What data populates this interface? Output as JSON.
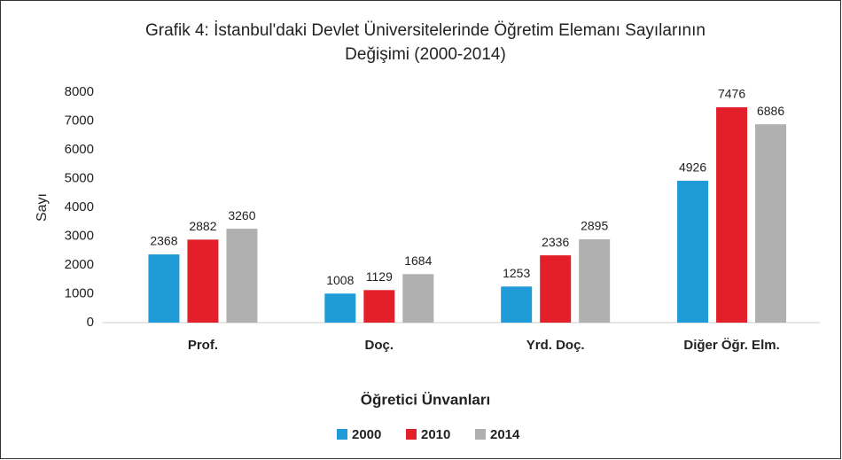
{
  "chart_data": {
    "type": "bar",
    "title": [
      "Grafik 4: İstanbul'daki Devlet Üniversitelerinde Öğretim Elemanı Sayılarının",
      "Değişimi (2000-2014)"
    ],
    "ylabel": "Sayı",
    "xlabel": "Öğretici Ünvanları",
    "categories": [
      "Prof.",
      "Doç.",
      "Yrd. Doç.",
      "Diğer Öğr. Elm."
    ],
    "series": [
      {
        "name": "2000",
        "color": "#1f9bd7",
        "values": [
          2368,
          1008,
          1253,
          4926
        ]
      },
      {
        "name": "2010",
        "color": "#e3202a",
        "values": [
          2882,
          1129,
          2336,
          7476
        ]
      },
      {
        "name": "2014",
        "color": "#b0b0b0",
        "values": [
          3260,
          1684,
          2895,
          6886
        ]
      }
    ],
    "ylim": [
      0,
      8000
    ],
    "yticks": [
      0,
      1000,
      2000,
      3000,
      4000,
      5000,
      6000,
      7000,
      8000
    ],
    "grid": false,
    "legend": "bottom"
  }
}
